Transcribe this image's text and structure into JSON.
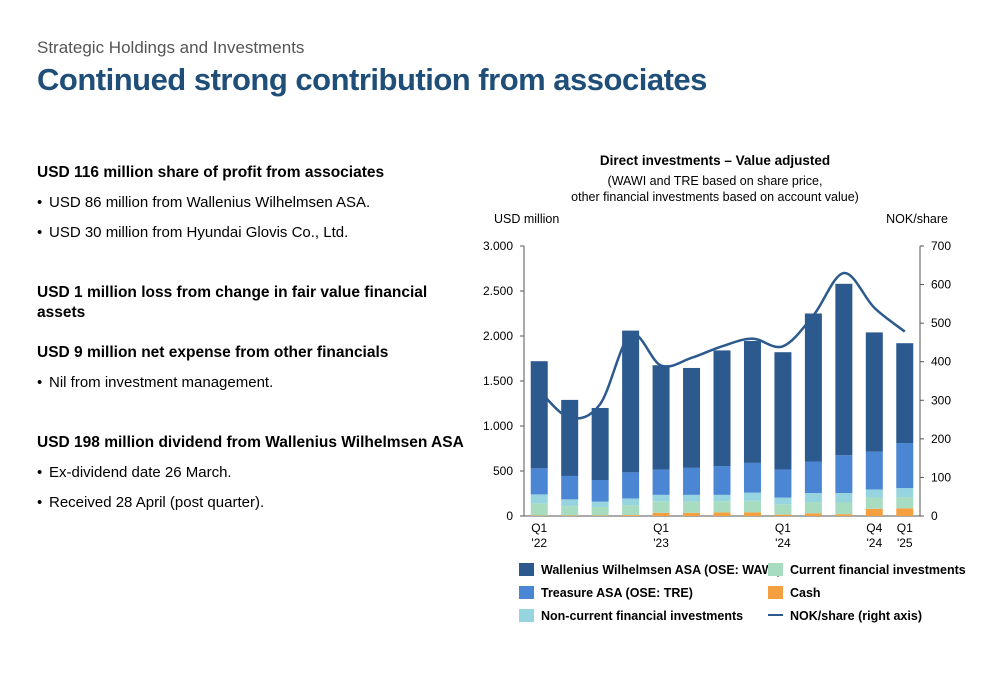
{
  "header": {
    "subtitle": "Strategic Holdings and Investments",
    "title": "Continued strong contribution from associates"
  },
  "left_text": [
    {
      "type": "head",
      "text": "USD 116 million share of profit from associates"
    },
    {
      "type": "bullet",
      "text": "USD 86 million from Wallenius Wilhelmsen ASA."
    },
    {
      "type": "bullet",
      "text": "USD 30 million from Hyundai Glovis Co., Ltd."
    },
    {
      "type": "gap"
    },
    {
      "type": "head",
      "text": "USD 1 million loss from change in fair value financial assets"
    },
    {
      "type": "gap"
    },
    {
      "type": "head",
      "text": "USD 9 million net expense from other financials"
    },
    {
      "type": "bullet",
      "text": "Nil from investment management."
    },
    {
      "type": "gap"
    },
    {
      "type": "head",
      "text": "USD 198 million dividend from Wallenius Wilhelmsen ASA"
    },
    {
      "type": "bullet",
      "text": "Ex-dividend date 26 March."
    },
    {
      "type": "bullet",
      "text": "Received 28 April (post quarter)."
    }
  ],
  "bullet_char": "•",
  "chart_data": {
    "type": "bar",
    "stacked": true,
    "title": "Direct investments – Value adjusted",
    "subtitle_lines": [
      "(WAWI and TRE based on share price,",
      "other financial investments based on account value)"
    ],
    "ylabel_left": "USD million",
    "ylabel_right": "NOK/share",
    "ylim": [
      0,
      3000
    ],
    "yticks": [
      0,
      500,
      1000,
      1500,
      2000,
      2500,
      3000
    ],
    "ytick_labels": [
      "0",
      "500",
      "1.000",
      "1.500",
      "2.000",
      "2.500",
      "3.000"
    ],
    "ylim_right": [
      0,
      700
    ],
    "yticks_right": [
      0,
      100,
      200,
      300,
      400,
      500,
      600,
      700
    ],
    "ytick_labels_right": [
      "0",
      "100",
      "200",
      "300",
      "400",
      "500",
      "600",
      "700"
    ],
    "x_labels": [
      {
        "index": 0,
        "lines": [
          "Q1",
          "'22"
        ]
      },
      {
        "index": 4,
        "lines": [
          "Q1",
          "'23"
        ]
      },
      {
        "index": 8,
        "lines": [
          "Q1",
          "'24"
        ]
      },
      {
        "index": 11,
        "lines": [
          "Q4",
          "'24"
        ]
      },
      {
        "index": 12,
        "lines": [
          "Q1",
          "'25"
        ]
      }
    ],
    "categories": [
      "Q1 '22",
      "Q2 '22",
      "Q3 '22",
      "Q4 '22",
      "Q1 '23",
      "Q2 '23",
      "Q3 '23",
      "Q4 '23",
      "Q1 '24",
      "Q2 '24",
      "Q3 '24",
      "Q4 '24",
      "Q1 '25"
    ],
    "series": [
      {
        "name": "Cash",
        "color": "#f4a040",
        "values": [
          5,
          5,
          5,
          10,
          35,
          35,
          40,
          40,
          15,
          30,
          20,
          80,
          85
        ]
      },
      {
        "name": "Current financial investments",
        "color": "#a8dcc0",
        "values": [
          135,
          105,
          95,
          110,
          130,
          125,
          125,
          130,
          115,
          125,
          130,
          125,
          125
        ]
      },
      {
        "name": "Non-current financial investments",
        "color": "#96d4e0",
        "values": [
          100,
          75,
          60,
          75,
          70,
          75,
          70,
          90,
          75,
          100,
          105,
          90,
          100
        ]
      },
      {
        "name": "Treasure ASA (OSE: TRE)",
        "color": "#4a86d4",
        "values": [
          290,
          260,
          240,
          290,
          280,
          300,
          320,
          330,
          310,
          350,
          420,
          420,
          500
        ]
      },
      {
        "name": "Wallenius Wilhelmsen ASA (OSE: WAWI)",
        "color": "#2c5a8e",
        "values": [
          1190,
          845,
          800,
          1575,
          1160,
          1110,
          1285,
          1355,
          1305,
          1645,
          1905,
          1325,
          1110
        ]
      }
    ],
    "line_series": {
      "name": "NOK/share (right axis)",
      "color": "#2c5a8e",
      "axis": "right",
      "values": [
        325,
        255,
        290,
        470,
        390,
        410,
        440,
        460,
        440,
        520,
        630,
        540,
        478
      ]
    },
    "legend": [
      {
        "label": "Wallenius Wilhelmsen ASA (OSE: WAWI)",
        "color": "#2c5a8e",
        "kind": "box"
      },
      {
        "label": "Current financial investments",
        "color": "#a8dcc0",
        "kind": "box"
      },
      {
        "label": "Treasure ASA (OSE: TRE)",
        "color": "#4a86d4",
        "kind": "box"
      },
      {
        "label": "Cash",
        "color": "#f4a040",
        "kind": "box"
      },
      {
        "label": "Non-current financial investments",
        "color": "#96d4e0",
        "kind": "box"
      },
      {
        "label": "NOK/share (right axis)",
        "color": "#2c5a8e",
        "kind": "line"
      }
    ]
  }
}
